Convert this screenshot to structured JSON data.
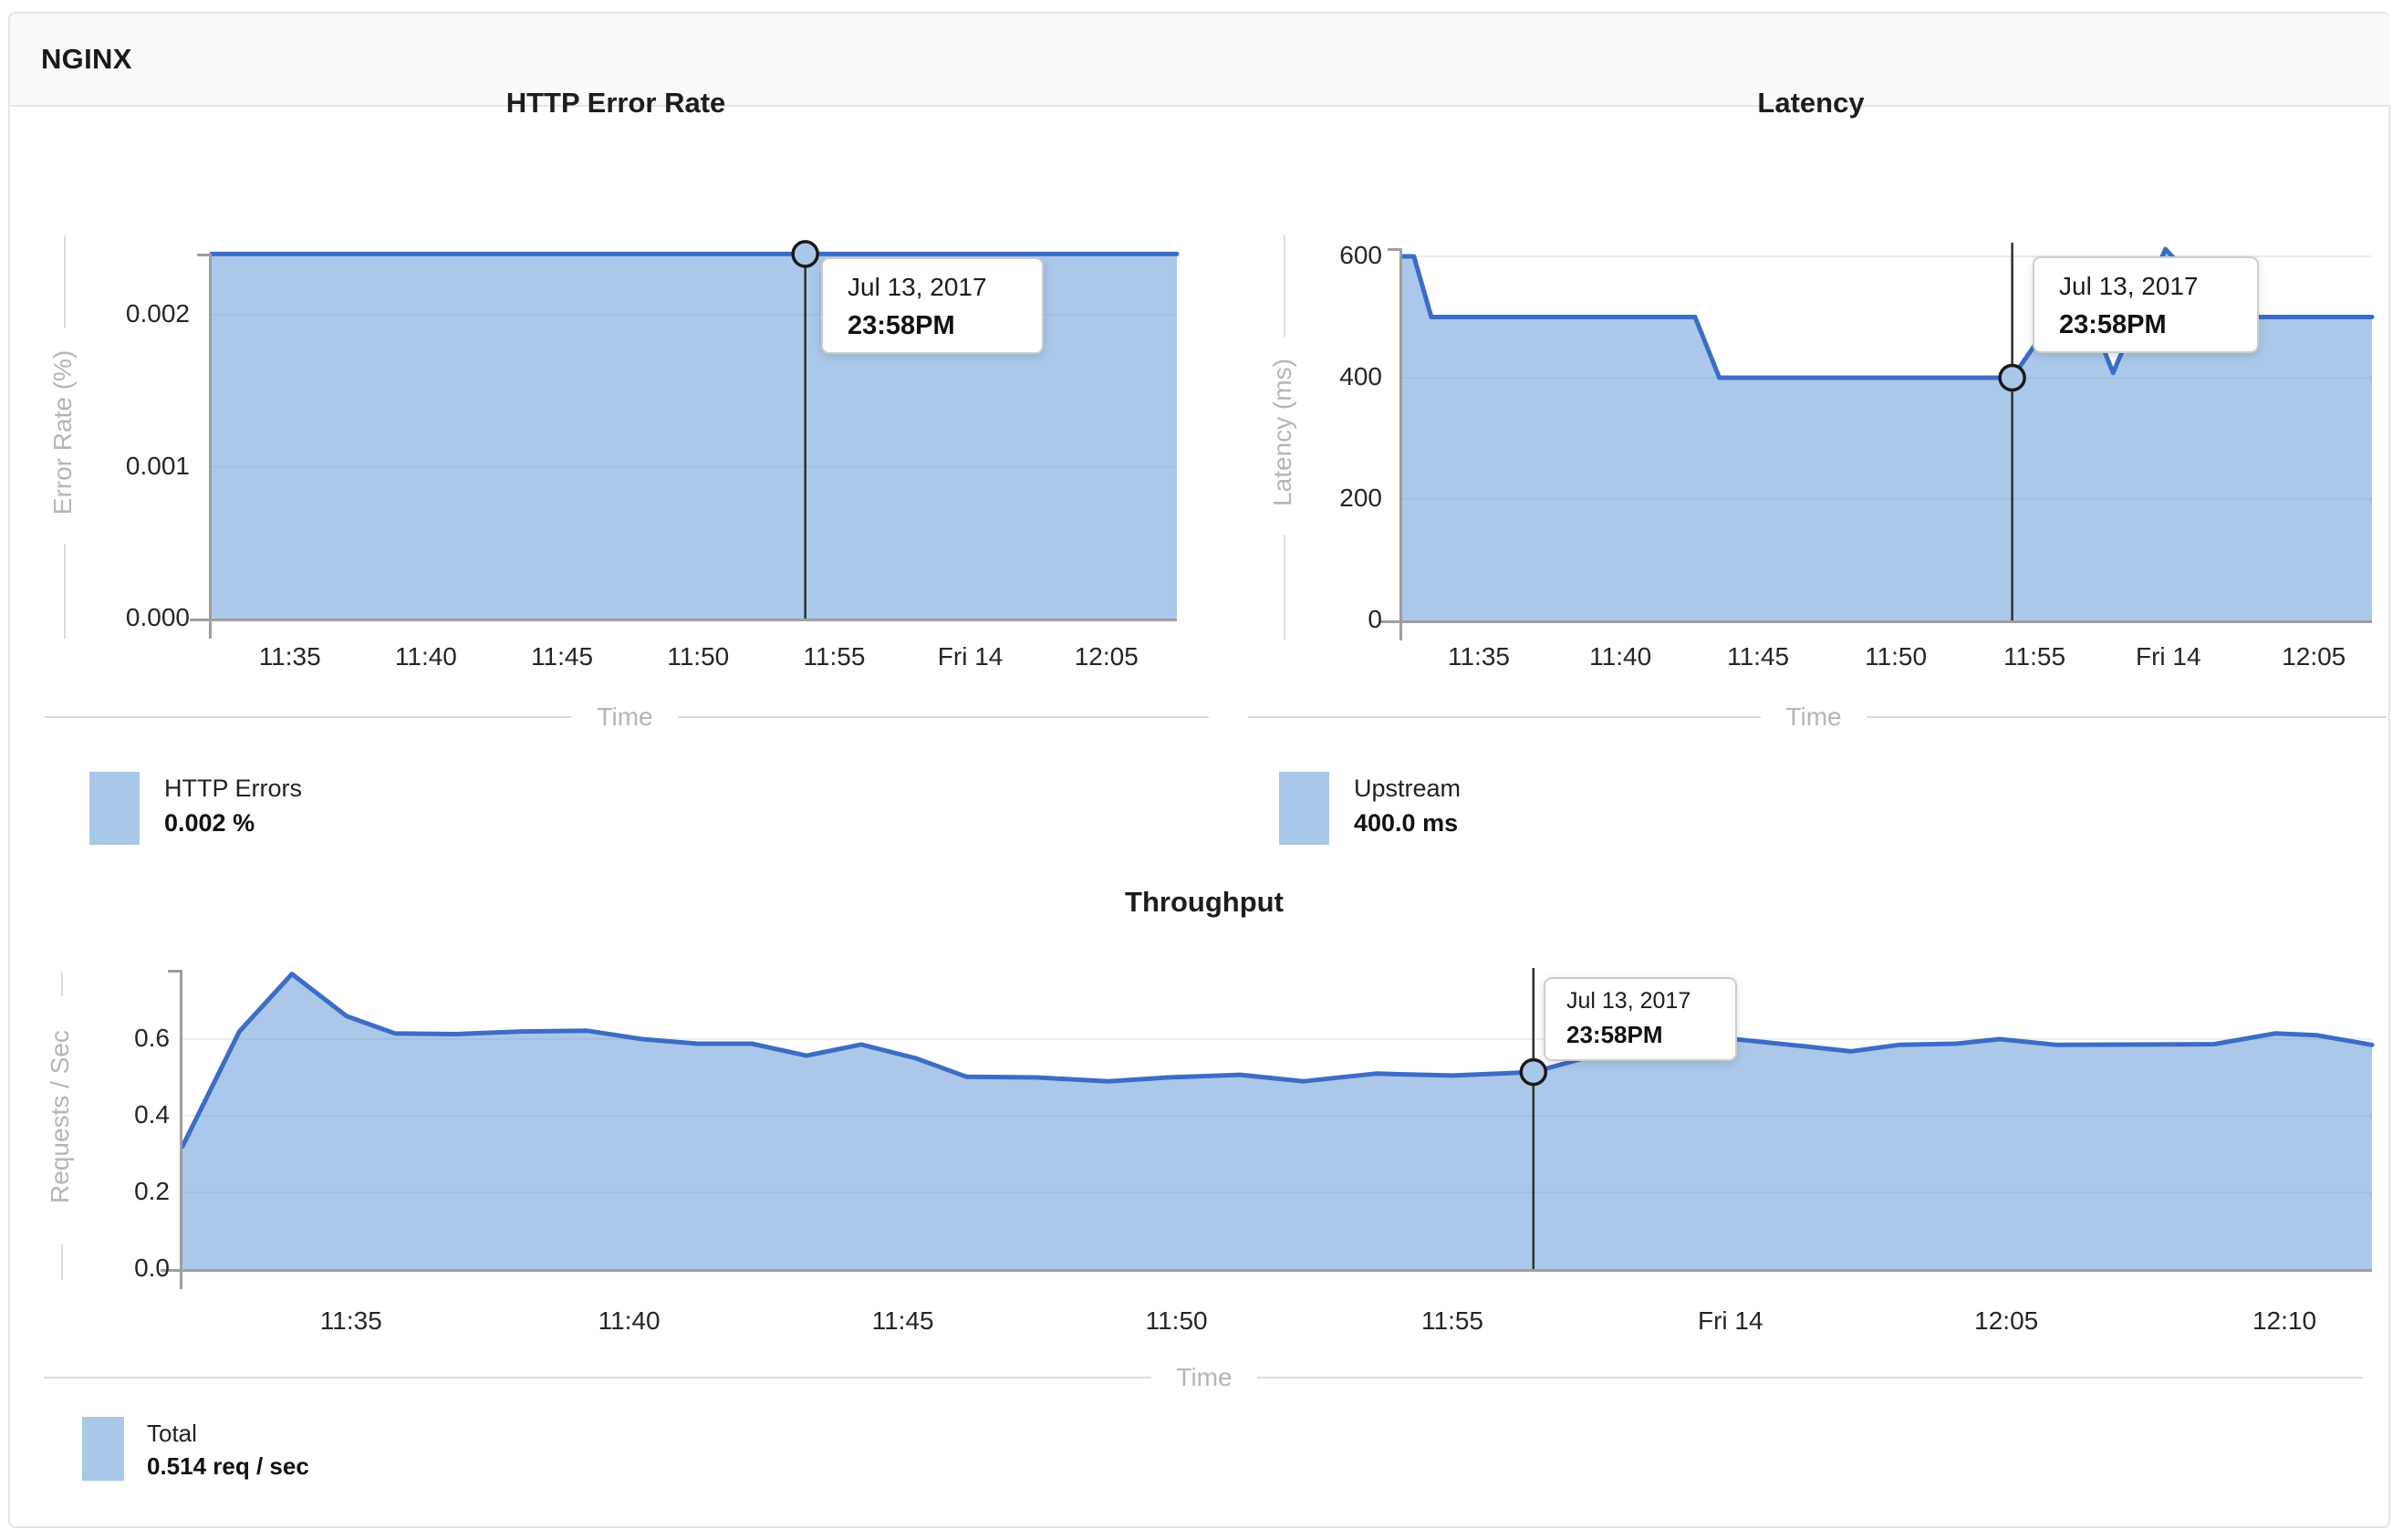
{
  "header": {
    "title": "NGINX"
  },
  "colors": {
    "line": "#3c6dc5",
    "area_fill_base": "#5e95d6",
    "area_fill_opacity": 0.52,
    "area_solid": "#a9c7e9",
    "grid": "#ececec",
    "axis": "#9e9e9e",
    "crosshair": "#2f2f2f",
    "marker_stroke": "#1a1a1a",
    "text_dark": "#1d1d1d",
    "text_muted": "#b5b5b5",
    "header_bg": "#fafafa",
    "panel_border": "#e6e6e6"
  },
  "chart_data": [
    {
      "type": "area",
      "title": "HTTP Error Rate",
      "xlabel": "Time",
      "ylabel": "Error Rate (%)",
      "ylim": [
        0,
        0.0024
      ],
      "grid": "horizontal",
      "legend_position": "bottom-left",
      "x_ticks": [
        {
          "label": "11:35",
          "pos": 0.081
        },
        {
          "label": "11:40",
          "pos": 0.222
        },
        {
          "label": "11:45",
          "pos": 0.363
        },
        {
          "label": "11:50",
          "pos": 0.504
        },
        {
          "label": "11:55",
          "pos": 0.645
        },
        {
          "label": "Fri 14",
          "pos": 0.786
        },
        {
          "label": "12:05",
          "pos": 0.927
        }
      ],
      "y_ticks": [
        {
          "label": "0.002",
          "value": 0.002
        },
        {
          "label": "0.001",
          "value": 0.001
        },
        {
          "label": "0.000",
          "value": 0
        }
      ],
      "series": [
        {
          "name": "HTTP Errors",
          "unit": "%",
          "points": [
            [
              0,
              0.0024
            ],
            [
              1,
              0.0024
            ]
          ]
        }
      ],
      "marker": {
        "x": 0.615,
        "value": 0.0024
      },
      "tooltip": {
        "date": "Jul 13, 2017",
        "time": "23:58PM"
      },
      "legend": {
        "label": "HTTP Errors",
        "value": "0.002 %"
      }
    },
    {
      "type": "area",
      "title": "Latency",
      "xlabel": "Time",
      "ylabel": "Latency (ms)",
      "ylim": [
        0,
        612
      ],
      "grid": "horizontal",
      "legend_position": "bottom-left",
      "x_ticks": [
        {
          "label": "11:35",
          "pos": 0.079
        },
        {
          "label": "11:40",
          "pos": 0.225
        },
        {
          "label": "11:45",
          "pos": 0.367
        },
        {
          "label": "11:50",
          "pos": 0.509
        },
        {
          "label": "11:55",
          "pos": 0.652
        },
        {
          "label": "Fri 14",
          "pos": 0.79
        },
        {
          "label": "12:05",
          "pos": 0.94
        }
      ],
      "y_ticks": [
        {
          "label": "600",
          "value": 600
        },
        {
          "label": "400",
          "value": 400
        },
        {
          "label": "200",
          "value": 200
        },
        {
          "label": "0",
          "value": 0
        }
      ],
      "series": [
        {
          "name": "Upstream",
          "unit": "ms",
          "points": [
            [
              0,
              600
            ],
            [
              0.012,
              600
            ],
            [
              0.03,
              500
            ],
            [
              0.302,
              500
            ],
            [
              0.327,
              400
            ],
            [
              0.629,
              400
            ],
            [
              0.655,
              460
            ],
            [
              0.695,
              560
            ],
            [
              0.733,
              408
            ],
            [
              0.787,
              612
            ],
            [
              0.851,
              500
            ],
            [
              1,
              500
            ]
          ]
        }
      ],
      "marker": {
        "x": 0.629,
        "value": 400
      },
      "tooltip": {
        "date": "Jul 13, 2017",
        "time": "23:58PM"
      },
      "legend": {
        "label": "Upstream",
        "value": "400.0 ms"
      }
    },
    {
      "type": "area",
      "title": "Throughput",
      "xlabel": "Time",
      "ylabel": "Requests / Sec",
      "ylim": [
        0,
        0.78
      ],
      "grid": "horizontal",
      "legend_position": "bottom-left",
      "x_ticks": [
        {
          "label": "11:35",
          "pos": 0.077
        },
        {
          "label": "11:40",
          "pos": 0.204
        },
        {
          "label": "11:45",
          "pos": 0.329
        },
        {
          "label": "11:50",
          "pos": 0.454
        },
        {
          "label": "11:55",
          "pos": 0.58
        },
        {
          "label": "Fri 14",
          "pos": 0.707
        },
        {
          "label": "12:05",
          "pos": 0.833
        },
        {
          "label": "12:10",
          "pos": 0.96
        }
      ],
      "y_ticks": [
        {
          "label": "0.6",
          "value": 0.6
        },
        {
          "label": "0.4",
          "value": 0.4
        },
        {
          "label": "0.2",
          "value": 0.2
        },
        {
          "label": "0.0",
          "value": 0
        }
      ],
      "series": [
        {
          "name": "Total",
          "unit": "req / sec",
          "points": [
            [
              0,
              0.32
            ],
            [
              0.013,
              0.47
            ],
            [
              0.026,
              0.62
            ],
            [
              0.05,
              0.77
            ],
            [
              0.075,
              0.66
            ],
            [
              0.097,
              0.615
            ],
            [
              0.125,
              0.613
            ],
            [
              0.155,
              0.62
            ],
            [
              0.185,
              0.622
            ],
            [
              0.21,
              0.6
            ],
            [
              0.235,
              0.588
            ],
            [
              0.26,
              0.588
            ],
            [
              0.285,
              0.557
            ],
            [
              0.31,
              0.586
            ],
            [
              0.335,
              0.55
            ],
            [
              0.358,
              0.502
            ],
            [
              0.39,
              0.5
            ],
            [
              0.423,
              0.49
            ],
            [
              0.45,
              0.5
            ],
            [
              0.483,
              0.507
            ],
            [
              0.512,
              0.49
            ],
            [
              0.545,
              0.51
            ],
            [
              0.58,
              0.505
            ],
            [
              0.617,
              0.514
            ],
            [
              0.64,
              0.55
            ],
            [
              0.67,
              0.575
            ],
            [
              0.709,
              0.6
            ],
            [
              0.743,
              0.58
            ],
            [
              0.762,
              0.568
            ],
            [
              0.784,
              0.585
            ],
            [
              0.81,
              0.588
            ],
            [
              0.83,
              0.6
            ],
            [
              0.856,
              0.585
            ],
            [
              0.9,
              0.586
            ],
            [
              0.928,
              0.587
            ],
            [
              0.956,
              0.615
            ],
            [
              0.975,
              0.61
            ],
            [
              1,
              0.585
            ]
          ]
        }
      ],
      "marker": {
        "x": 0.617,
        "value": 0.514
      },
      "tooltip": {
        "date": "Jul 13, 2017",
        "time": "23:58PM"
      },
      "legend": {
        "label": "Total",
        "value": "0.514 req / sec"
      }
    }
  ]
}
